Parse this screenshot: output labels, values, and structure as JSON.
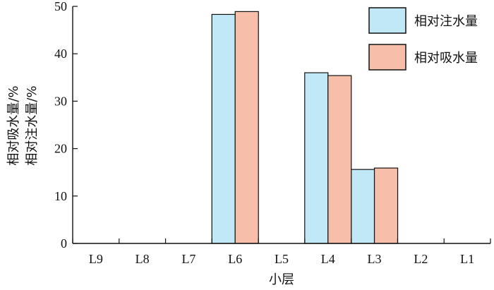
{
  "chart_data": {
    "type": "bar",
    "title": "",
    "xlabel": "小层",
    "ylabel_lines": [
      "相对吸水量/%",
      "相对注水量/%"
    ],
    "categories": [
      "L9",
      "L8",
      "L7",
      "L6",
      "L5",
      "L4",
      "L3",
      "L2",
      "L1"
    ],
    "ylim": [
      0,
      50
    ],
    "yticks": [
      0,
      10,
      20,
      30,
      40,
      50
    ],
    "grid": false,
    "legend_position": "top-right",
    "series": [
      {
        "name": "相对注水量",
        "color": "#c0e8f6",
        "values": [
          0,
          0,
          0,
          48.3,
          0,
          36.0,
          15.6,
          0,
          0
        ]
      },
      {
        "name": "相对吸水量",
        "color": "#f7bfaa",
        "values": [
          0,
          0,
          0,
          48.9,
          0,
          35.4,
          15.9,
          0,
          0
        ]
      }
    ]
  }
}
